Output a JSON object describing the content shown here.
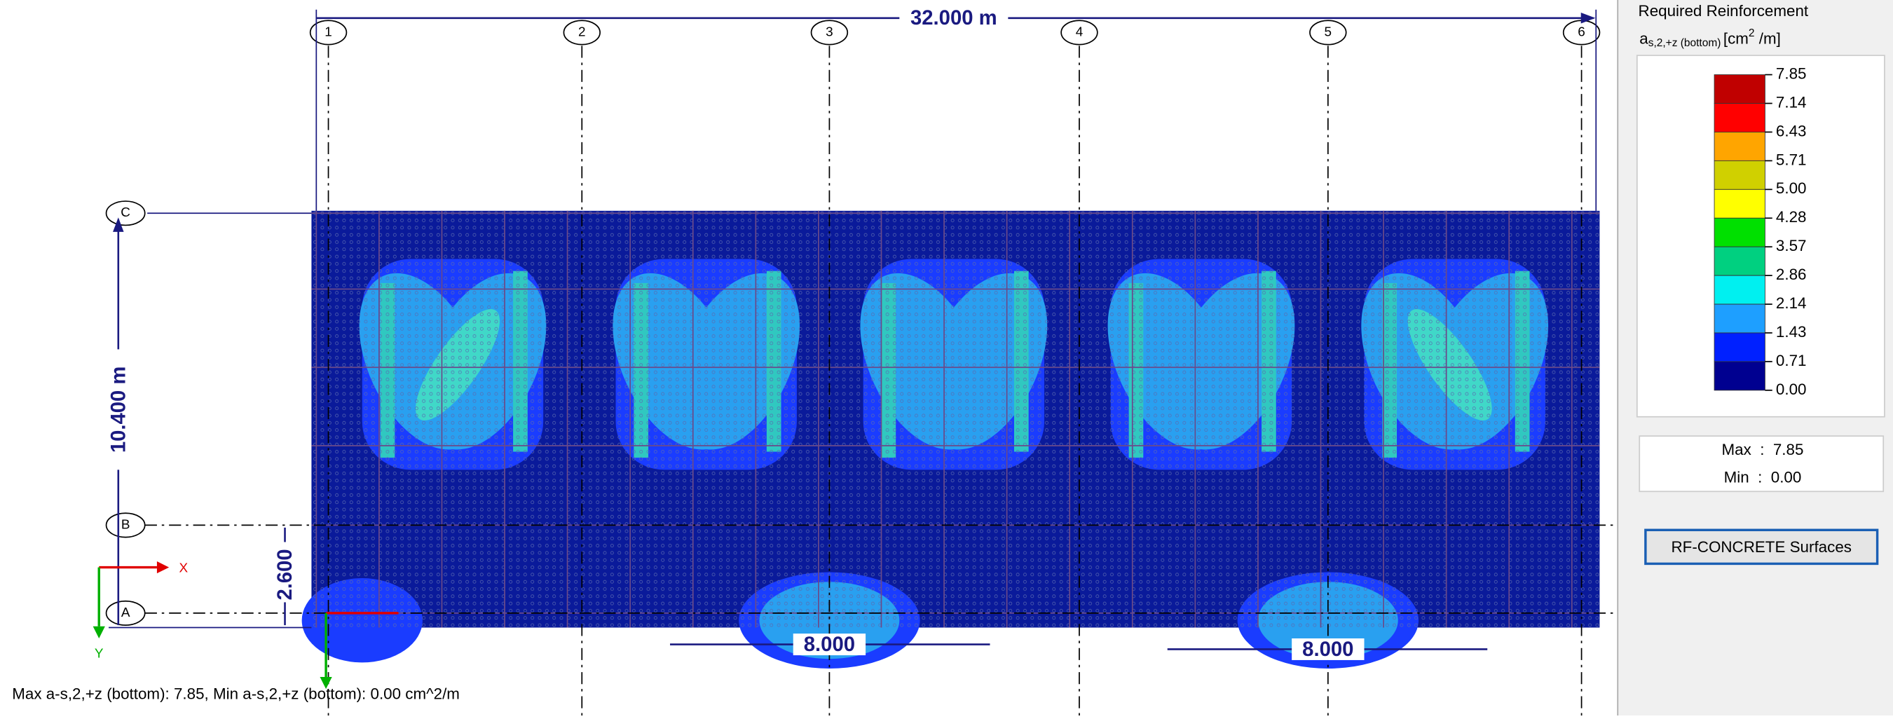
{
  "view": {
    "dimensions": {
      "total_x": "32.000 m",
      "total_y": "10.400 m",
      "bay_ab": "2.600",
      "span_1": "8.000",
      "span_2": "8.000"
    },
    "grid_x": [
      "1",
      "2",
      "3",
      "4",
      "5",
      "6"
    ],
    "grid_y": [
      "C",
      "B",
      "A"
    ],
    "axes": {
      "x": "X",
      "y": "Y"
    },
    "status": "Max a-s,2,+z (bottom): 7.85, Min a-s,2,+z (bottom): 0.00 cm^2/m"
  },
  "panel": {
    "title": "Required Reinforcement",
    "symbol": "a",
    "subscript": "s,2,+z (bottom)",
    "unit_open": "[cm",
    "unit_sup": "2",
    "unit_close": " /m]",
    "legend_values": [
      "7.85",
      "7.14",
      "6.43",
      "5.71",
      "5.00",
      "4.28",
      "3.57",
      "2.86",
      "2.14",
      "1.43",
      "0.71",
      "0.00"
    ],
    "legend_colors": [
      "#c00000",
      "#ff0000",
      "#ffa500",
      "#d0d000",
      "#ffff00",
      "#00e000",
      "#00d080",
      "#00f0f0",
      "#1e9fff",
      "#0020ff",
      "#000090"
    ],
    "max": "Max  :  7.85",
    "min": "Min  :  0.00",
    "button": "RF-CONCRETE Surfaces"
  }
}
